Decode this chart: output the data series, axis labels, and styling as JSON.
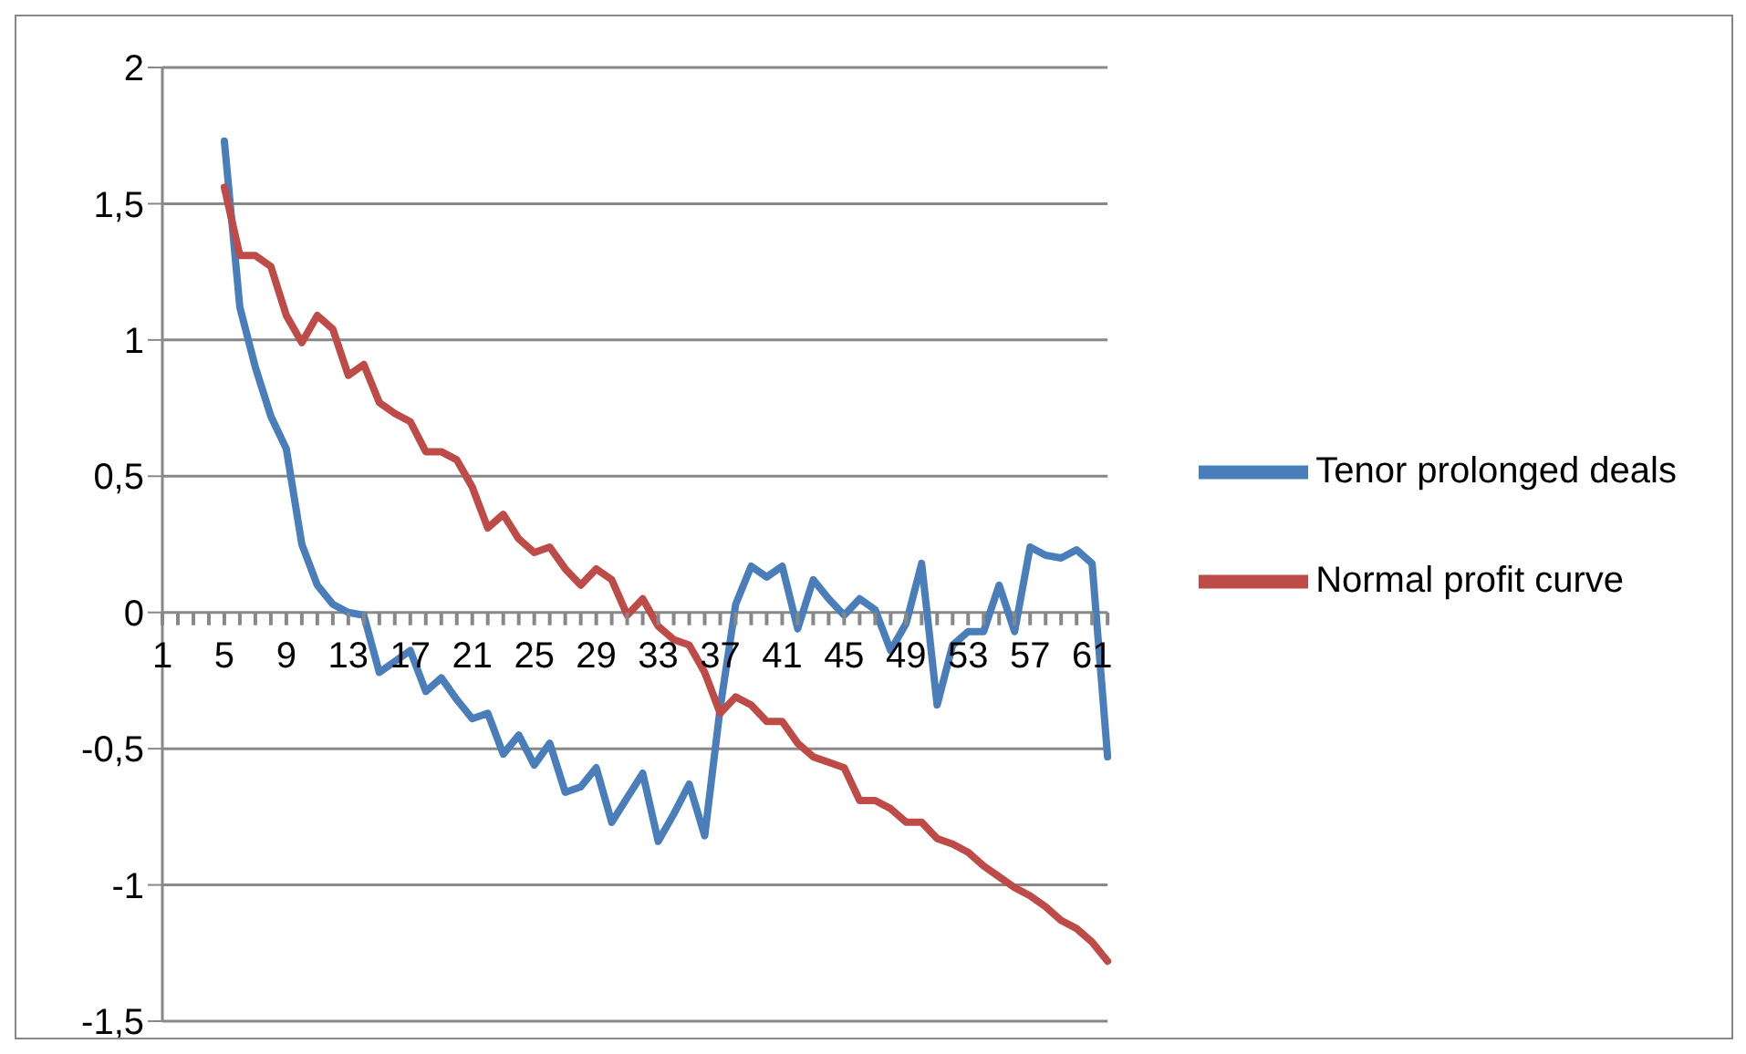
{
  "chart_data": {
    "type": "line",
    "categories": [
      "1",
      null,
      null,
      null,
      "5",
      null,
      null,
      null,
      "9",
      null,
      null,
      null,
      "13",
      null,
      null,
      null,
      "17",
      null,
      null,
      null,
      "21",
      null,
      null,
      null,
      "25",
      null,
      null,
      null,
      "29",
      null,
      null,
      null,
      "33",
      null,
      null,
      null,
      "37",
      null,
      null,
      null,
      "41",
      null,
      null,
      null,
      "45",
      null,
      null,
      null,
      "49",
      null,
      null,
      null,
      "53",
      null,
      null,
      null,
      "57",
      null,
      null,
      null,
      "61",
      null
    ],
    "series": [
      {
        "name": "Tenor prolonged deals",
        "color": "#4a7ebb",
        "values": [
          null,
          null,
          null,
          null,
          1.73,
          1.12,
          0.9,
          0.72,
          0.6,
          0.25,
          0.1,
          0.03,
          0.0,
          -0.01,
          -0.22,
          -0.18,
          -0.14,
          -0.29,
          -0.24,
          -0.32,
          -0.39,
          -0.37,
          -0.52,
          -0.45,
          -0.56,
          -0.48,
          -0.66,
          -0.64,
          -0.57,
          -0.77,
          -0.68,
          -0.59,
          -0.84,
          -0.74,
          -0.63,
          -0.82,
          -0.35,
          0.03,
          0.17,
          0.13,
          0.17,
          -0.06,
          0.12,
          0.05,
          -0.01,
          0.05,
          0.01,
          -0.14,
          -0.04,
          0.18,
          -0.34,
          -0.12,
          -0.07,
          -0.07,
          0.1,
          -0.07,
          0.24,
          0.21,
          0.2,
          0.23,
          0.18,
          -0.53
        ]
      },
      {
        "name": "Normal profit curve",
        "color": "#be4b48",
        "values": [
          null,
          null,
          null,
          null,
          1.56,
          1.31,
          1.31,
          1.27,
          1.09,
          0.99,
          1.09,
          1.04,
          0.87,
          0.91,
          0.77,
          0.73,
          0.7,
          0.59,
          0.59,
          0.56,
          0.46,
          0.31,
          0.36,
          0.27,
          0.22,
          0.24,
          0.16,
          0.1,
          0.16,
          0.12,
          -0.01,
          0.05,
          -0.05,
          -0.1,
          -0.12,
          -0.22,
          -0.37,
          -0.31,
          -0.34,
          -0.4,
          -0.4,
          -0.48,
          -0.53,
          -0.55,
          -0.57,
          -0.69,
          -0.69,
          -0.72,
          -0.77,
          -0.77,
          -0.83,
          -0.85,
          -0.88,
          -0.93,
          -0.97,
          -1.01,
          -1.04,
          -1.08,
          -1.13,
          -1.16,
          -1.21,
          -1.28
        ]
      }
    ],
    "ylim": [
      -1.5,
      2
    ],
    "yticks": [
      {
        "value": -1.5,
        "label": "-1,5"
      },
      -1,
      {
        "value": -0.5,
        "label": "-0,5"
      },
      0,
      {
        "value": 0.5,
        "label": "0,5"
      },
      1,
      {
        "value": 1.5,
        "label": "1,5"
      },
      2
    ],
    "grid": "y",
    "legend": "right",
    "marker": "none",
    "line_style": "solid"
  }
}
